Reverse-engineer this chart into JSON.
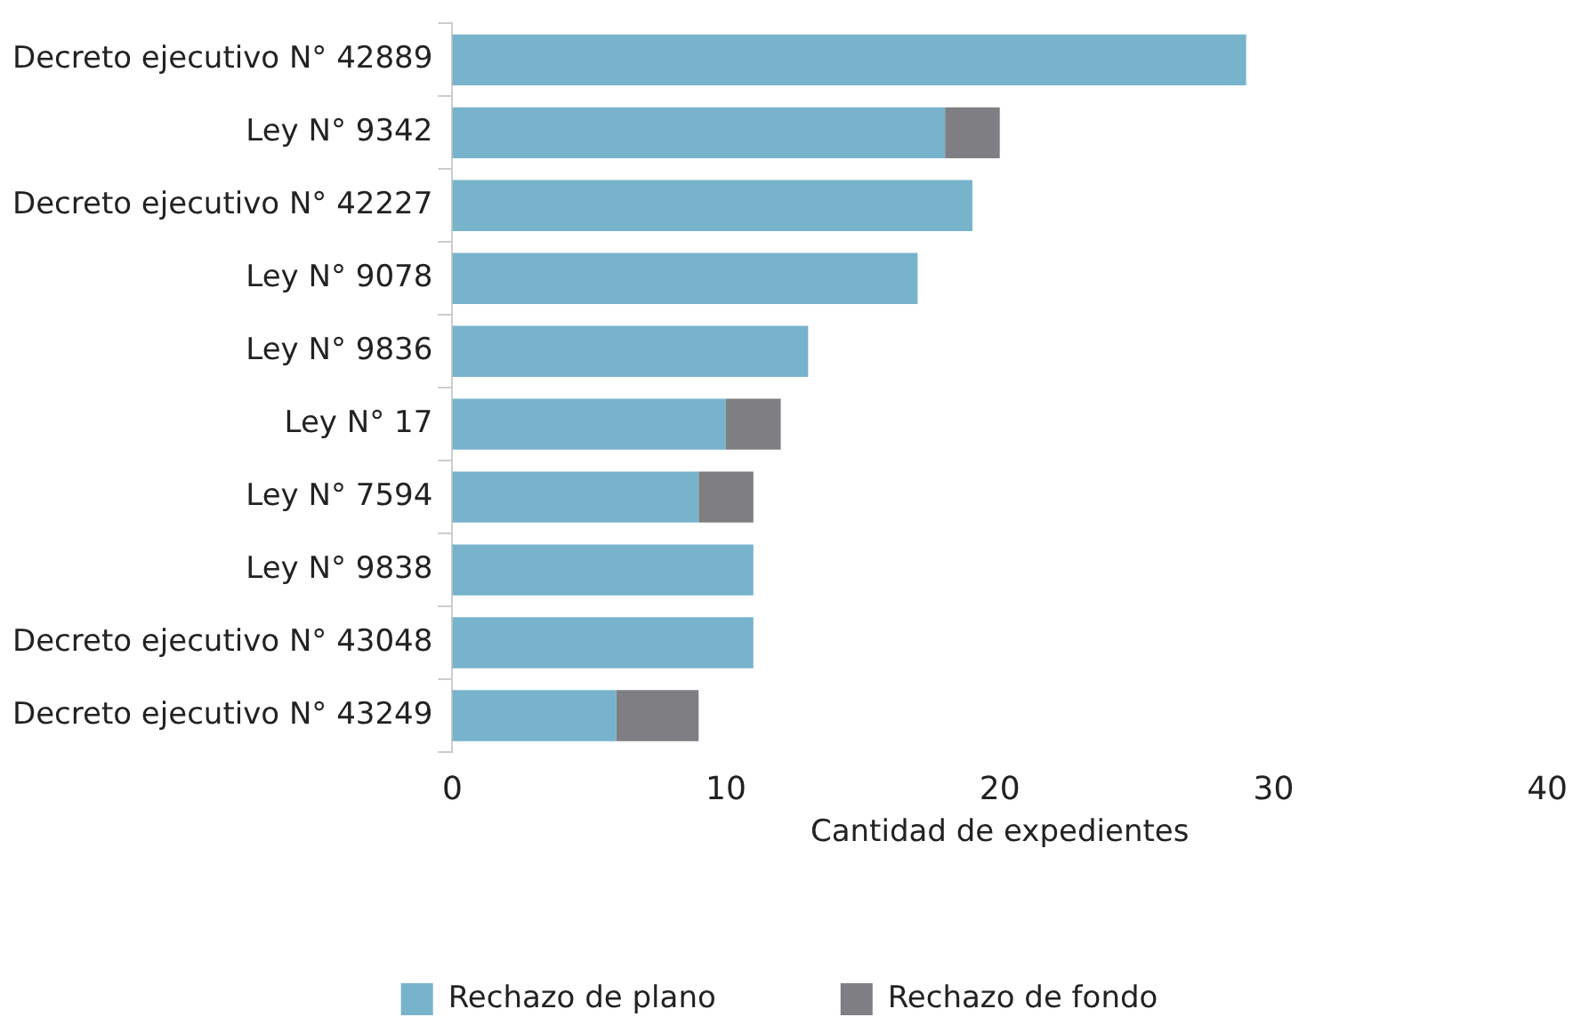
{
  "chart_data": {
    "type": "bar",
    "orientation": "horizontal",
    "stacked": true,
    "xlabel": "Cantidad de expedientes",
    "categories": [
      "Decreto ejecutivo N° 42889",
      "Ley N° 9342",
      "Decreto ejecutivo N° 42227",
      "Ley N° 9078",
      "Ley N° 9836",
      "Ley N° 17",
      "Ley N° 7594",
      "Ley N° 9838",
      "Decreto ejecutivo N° 43048",
      "Decreto ejecutivo N° 43249"
    ],
    "series": [
      {
        "name": "Rechazo de plano",
        "color": "#78b3cc",
        "values": [
          29,
          18,
          19,
          17,
          13,
          10,
          9,
          11,
          11,
          6
        ]
      },
      {
        "name": "Rechazo de fondo",
        "color": "#7f7f83",
        "values": [
          0,
          2,
          0,
          0,
          0,
          2,
          2,
          0,
          0,
          3
        ]
      }
    ],
    "xlim": [
      0,
      40
    ],
    "xticks": [
      0,
      10,
      20,
      30,
      40
    ],
    "grid": false,
    "legend": "bottom"
  }
}
